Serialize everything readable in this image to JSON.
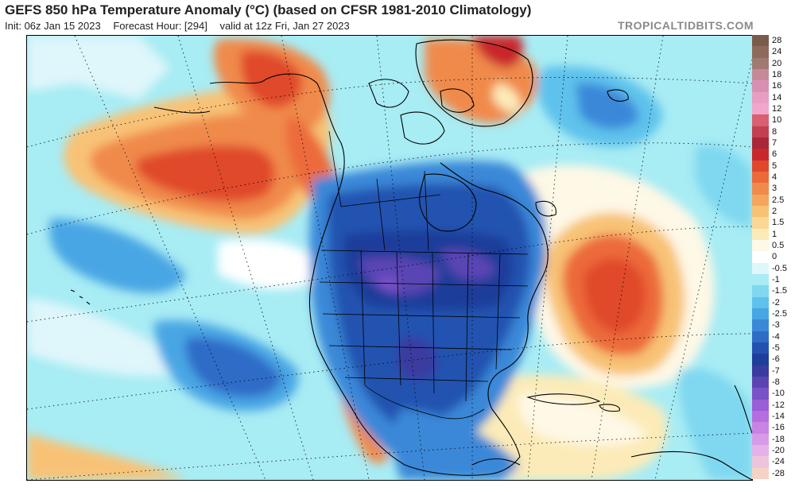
{
  "header": {
    "title": "GEFS 850 hPa Temperature Anomaly (°C) (based on CFSR 1981-2010 Climatology)",
    "init": "Init: 06z Jan 15 2023",
    "forecast_hour": "Forecast Hour: [294]",
    "valid": "valid at 12z Fri, Jan 27 2023",
    "brand": "TROPICALTIDBITS.COM"
  },
  "colorbar": {
    "levels": [
      {
        "label": "28",
        "color": "#7a5a4a"
      },
      {
        "label": "24",
        "color": "#8e6a5c"
      },
      {
        "label": "20",
        "color": "#a07a70"
      },
      {
        "label": "18",
        "color": "#c48a9a"
      },
      {
        "label": "16",
        "color": "#d890b0"
      },
      {
        "label": "14",
        "color": "#e89ec0"
      },
      {
        "label": "12",
        "color": "#f2a6cc"
      },
      {
        "label": "10",
        "color": "#d86070"
      },
      {
        "label": "8",
        "color": "#c24050"
      },
      {
        "label": "7",
        "color": "#a8283a"
      },
      {
        "label": "6",
        "color": "#c8282c"
      },
      {
        "label": "5",
        "color": "#e0482c"
      },
      {
        "label": "4",
        "color": "#ec6a3a"
      },
      {
        "label": "3",
        "color": "#f08a4c"
      },
      {
        "label": "2.5",
        "color": "#f4a65e"
      },
      {
        "label": "2",
        "color": "#f8c276"
      },
      {
        "label": "1.5",
        "color": "#fad894"
      },
      {
        "label": "1",
        "color": "#fcebb8"
      },
      {
        "label": "0.5",
        "color": "#fef8e6"
      },
      {
        "label": "0",
        "color": "#ffffff"
      },
      {
        "label": "-0.5",
        "color": "#dff6fb"
      },
      {
        "label": "-1",
        "color": "#a8ecf4"
      },
      {
        "label": "-1.5",
        "color": "#7fd8f0"
      },
      {
        "label": "-2",
        "color": "#5ec2ec"
      },
      {
        "label": "-2.5",
        "color": "#49a6e4"
      },
      {
        "label": "-3",
        "color": "#3a88d8"
      },
      {
        "label": "-4",
        "color": "#2e6cc8"
      },
      {
        "label": "-5",
        "color": "#2452b0"
      },
      {
        "label": "-6",
        "color": "#1f3e9a"
      },
      {
        "label": "-7",
        "color": "#3a3aa0"
      },
      {
        "label": "-8",
        "color": "#5a44b4"
      },
      {
        "label": "-10",
        "color": "#7a52c8"
      },
      {
        "label": "-12",
        "color": "#9a5ed6"
      },
      {
        "label": "-14",
        "color": "#b46ee0"
      },
      {
        "label": "-16",
        "color": "#c884e4"
      },
      {
        "label": "-18",
        "color": "#d89ae6"
      },
      {
        "label": "-20",
        "color": "#e4b2e8"
      },
      {
        "label": "-24",
        "color": "#ecc4dc"
      },
      {
        "label": "-28",
        "color": "#f4d2c4"
      }
    ]
  }
}
